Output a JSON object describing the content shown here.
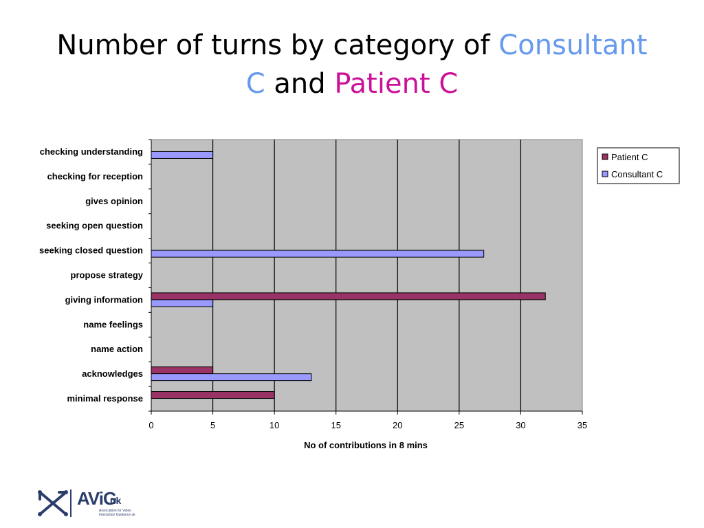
{
  "title": {
    "part1": "Number of turns by category of ",
    "part2": "Consultant",
    "part3": "C",
    "part4": " and ",
    "part5": "Patient C"
  },
  "colors": {
    "consultant": "#6699ee",
    "patient": "#cc1199",
    "plot_bg": "#c0c0c0",
    "patient_bar": "#993366",
    "consultant_bar": "#9999ff"
  },
  "chart_data": {
    "type": "bar",
    "orientation": "horizontal",
    "categories": [
      "checking understanding",
      "checking for reception",
      "gives opinion",
      "seeking open question",
      "seeking closed question",
      "propose strategy",
      "giving information",
      "name feelings",
      "name action",
      "acknowledges",
      "minimal response"
    ],
    "series": [
      {
        "name": "Patient C",
        "values": [
          0,
          0,
          0,
          0,
          0,
          0,
          32,
          0,
          0,
          5,
          10
        ]
      },
      {
        "name": "Consultant C",
        "values": [
          5,
          0,
          0,
          0,
          27,
          0,
          5,
          0,
          0,
          13,
          0
        ]
      }
    ],
    "xlabel": "No of contributions in 8 mins",
    "ylabel": "",
    "xlim": [
      0,
      35
    ],
    "xticks": [
      0,
      5,
      10,
      15,
      20,
      25,
      30,
      35
    ],
    "grid": true,
    "legend_placement": "right"
  },
  "logo": {
    "main": "AViG",
    "suffix": "uk",
    "subtitle": "Association for Video Interaction Guidance uk"
  }
}
